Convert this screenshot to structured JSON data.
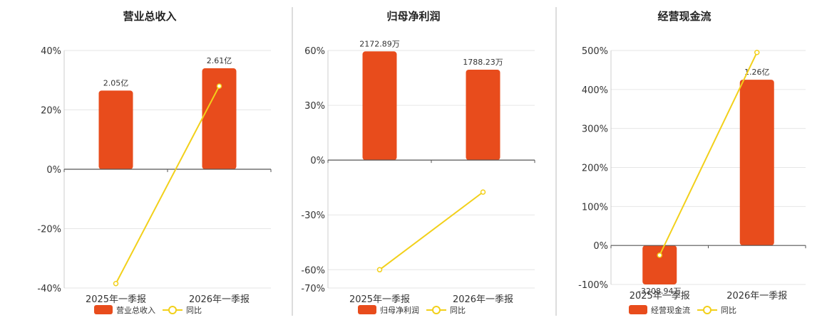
{
  "colors": {
    "bar": "#e84c1c",
    "line": "#f2d01a",
    "grid": "#e6e6e6",
    "axis": "#555555",
    "divider": "#bbbbbb"
  },
  "chart_data": [
    {
      "type": "bar",
      "title": "营业总收入",
      "categories": [
        "2025年一季报",
        "2026年一季报"
      ],
      "series": [
        {
          "name": "营业总收入",
          "type": "bar",
          "values": [
            26.5,
            34
          ],
          "labels": [
            "2.05亿",
            "2.61亿"
          ]
        },
        {
          "name": "同比",
          "type": "line",
          "values": [
            -38.5,
            28
          ]
        }
      ],
      "ylim": [
        -40,
        40
      ],
      "yticks": [
        -40,
        -20,
        0,
        20,
        40
      ],
      "ytick_labels": [
        "-40%",
        "-20%",
        "0%",
        "20%",
        "40%"
      ],
      "grid": true,
      "legend": "bottom"
    },
    {
      "type": "bar",
      "title": "归母净利润",
      "categories": [
        "2025年一季报",
        "2026年一季报"
      ],
      "series": [
        {
          "name": "归母净利润",
          "type": "bar",
          "values": [
            59.5,
            49.5
          ],
          "labels": [
            "2172.89万",
            "1788.23万"
          ]
        },
        {
          "name": "同比",
          "type": "line",
          "values": [
            -60,
            -17.5
          ]
        }
      ],
      "ylim": [
        -70,
        60
      ],
      "yticks": [
        -70,
        -60,
        -30,
        0,
        30,
        60
      ],
      "ytick_labels": [
        "-70%",
        "-60%",
        "-30%",
        "0%",
        "30%",
        "60%"
      ],
      "grid": true,
      "legend": "bottom"
    },
    {
      "type": "bar",
      "title": "经营现金流",
      "categories": [
        "2025年一季报",
        "2026年一季报"
      ],
      "series": [
        {
          "name": "经营现金流",
          "type": "bar",
          "values": [
            -100,
            425
          ],
          "labels": [
            "-3208.94万",
            "1.26亿"
          ]
        },
        {
          "name": "同比",
          "type": "line",
          "values": [
            -25,
            495
          ]
        }
      ],
      "ylim": [
        -100,
        500
      ],
      "yticks": [
        -100,
        0,
        100,
        200,
        300,
        400,
        500
      ],
      "ytick_labels": [
        "-100%",
        "0%",
        "100%",
        "200%",
        "300%",
        "400%",
        "500%"
      ],
      "grid": true,
      "legend": "bottom"
    }
  ]
}
